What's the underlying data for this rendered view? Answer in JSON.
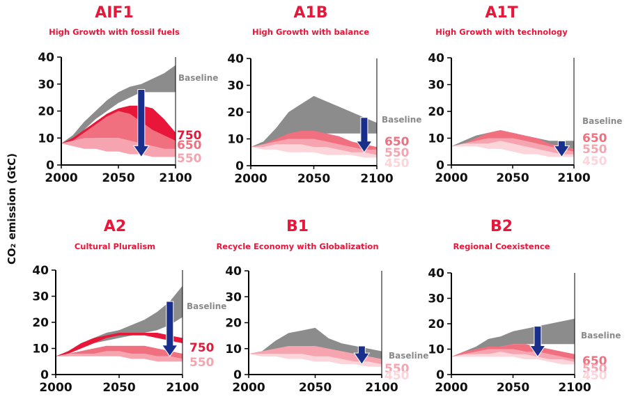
{
  "ylabel": "CO₂ emission (GtC)",
  "colors": {
    "baseline": "#8c8c8c",
    "s750": "#e8173a",
    "s650": "#f07080",
    "s550": "#f6a4b0",
    "s450": "#fcd5db",
    "arrow": "#1a2f8c",
    "axis": "#000000"
  },
  "chart_data": [
    {
      "type": "area",
      "title": "AIF1",
      "subtitle": "High Growth with fossil fuels",
      "xlim": [
        2000,
        2100
      ],
      "ylim": [
        0,
        40
      ],
      "xticks": [
        2000,
        2050,
        2100
      ],
      "yticks": [
        0,
        10,
        20,
        30,
        40
      ],
      "band_x": [
        2000,
        2010,
        2020,
        2030,
        2040,
        2050,
        2060,
        2070,
        2080,
        2090,
        2100
      ],
      "bands": [
        {
          "name": "Baseline",
          "color": "baseline",
          "lo": [
            8,
            9,
            13,
            17,
            20,
            23,
            25,
            27,
            27,
            27,
            27
          ],
          "hi": [
            8,
            11,
            16,
            20,
            24,
            27,
            29,
            30,
            32,
            34,
            37
          ]
        },
        {
          "name": "750",
          "color": "s750",
          "lo": [
            8,
            9,
            11,
            13,
            15,
            16,
            15,
            14,
            12,
            10,
            8
          ],
          "hi": [
            8,
            10,
            13,
            16,
            19,
            21,
            22,
            22,
            21,
            17,
            12
          ]
        },
        {
          "name": "650",
          "color": "s650",
          "lo": [
            8,
            8,
            9,
            10,
            10,
            10,
            9,
            8,
            7,
            6,
            5
          ],
          "hi": [
            8,
            9,
            12,
            15,
            18,
            20,
            19,
            16,
            13,
            11,
            9
          ]
        },
        {
          "name": "550",
          "color": "s550",
          "lo": [
            8,
            7,
            6,
            6,
            5,
            5,
            4,
            4,
            3,
            3,
            3
          ],
          "hi": [
            8,
            9,
            10,
            10,
            10,
            10,
            9,
            8,
            7,
            6,
            6
          ]
        }
      ],
      "labels": [
        {
          "text": "Baseline",
          "color": "baseline"
        },
        {
          "text": "750",
          "color": "s750"
        },
        {
          "text": "650",
          "color": "s650"
        },
        {
          "text": "550",
          "color": "s550"
        }
      ],
      "arrow": {
        "x": 2070,
        "from": 28,
        "to": 3
      }
    },
    {
      "type": "area",
      "title": "A1B",
      "subtitle": "High Growth with balance",
      "xlim": [
        2000,
        2100
      ],
      "ylim": [
        0,
        40
      ],
      "xticks": [
        2000,
        2050,
        2100
      ],
      "yticks": [
        0,
        10,
        20,
        30,
        40
      ],
      "band_x": [
        2000,
        2010,
        2020,
        2030,
        2040,
        2050,
        2060,
        2070,
        2080,
        2090,
        2100
      ],
      "bands": [
        {
          "name": "Baseline",
          "color": "baseline",
          "lo": [
            7,
            8,
            9,
            10,
            11,
            11,
            12,
            12,
            12,
            12,
            12
          ],
          "hi": [
            7,
            9,
            14,
            20,
            23,
            26,
            24,
            22,
            20,
            18,
            16
          ]
        },
        {
          "name": "650",
          "color": "s650",
          "lo": [
            7,
            7,
            8,
            8,
            8,
            8,
            8,
            7,
            6,
            6,
            5
          ],
          "hi": [
            7,
            8,
            10,
            12,
            13,
            13,
            12,
            11,
            9,
            8,
            7
          ]
        },
        {
          "name": "550",
          "color": "s550",
          "lo": [
            7,
            7,
            6,
            6,
            6,
            6,
            5,
            5,
            4,
            4,
            4
          ],
          "hi": [
            7,
            8,
            9,
            10,
            10,
            10,
            9,
            8,
            7,
            6,
            6
          ]
        },
        {
          "name": "450",
          "color": "s450",
          "lo": [
            7,
            6,
            6,
            5,
            5,
            5,
            4,
            4,
            4,
            3,
            3
          ],
          "hi": [
            7,
            7,
            8,
            8,
            8,
            7,
            7,
            6,
            5,
            5,
            4
          ]
        }
      ],
      "labels": [
        {
          "text": "Baseline",
          "color": "baseline"
        },
        {
          "text": "650",
          "color": "s650"
        },
        {
          "text": "550",
          "color": "s550"
        },
        {
          "text": "450",
          "color": "s450"
        }
      ],
      "arrow": {
        "x": 2090,
        "from": 18,
        "to": 5
      }
    },
    {
      "type": "area",
      "title": "A1T",
      "subtitle": "High Growth with technology",
      "xlim": [
        2000,
        2100
      ],
      "ylim": [
        0,
        40
      ],
      "xticks": [
        2000,
        2050,
        2100
      ],
      "yticks": [
        0,
        10,
        20,
        30,
        40
      ],
      "band_x": [
        2000,
        2010,
        2020,
        2030,
        2040,
        2050,
        2060,
        2070,
        2080,
        2090,
        2100
      ],
      "bands": [
        {
          "name": "Baseline",
          "color": "baseline",
          "lo": [
            7,
            8,
            9,
            10,
            10,
            10,
            9,
            8,
            7,
            7,
            6
          ],
          "hi": [
            7,
            9,
            11,
            12,
            12,
            12,
            11,
            10,
            9,
            9,
            9
          ]
        },
        {
          "name": "650",
          "color": "s650",
          "lo": [
            7,
            7,
            8,
            9,
            10,
            10,
            9,
            8,
            6,
            5,
            4
          ],
          "hi": [
            7,
            8,
            10,
            12,
            13,
            12,
            11,
            10,
            8,
            7,
            6
          ]
        },
        {
          "name": "550",
          "color": "s550",
          "lo": [
            7,
            7,
            7,
            7,
            7,
            6,
            5,
            5,
            4,
            4,
            3
          ],
          "hi": [
            7,
            8,
            9,
            10,
            10,
            10,
            9,
            8,
            7,
            6,
            5
          ]
        },
        {
          "name": "450",
          "color": "s450",
          "lo": [
            7,
            7,
            7,
            6,
            6,
            5,
            4,
            4,
            3,
            3,
            3
          ],
          "hi": [
            7,
            8,
            8,
            8,
            9,
            8,
            7,
            6,
            5,
            4,
            4
          ]
        }
      ],
      "labels": [
        {
          "text": "Baseline",
          "color": "baseline"
        },
        {
          "text": "650",
          "color": "s650"
        },
        {
          "text": "550",
          "color": "s550"
        },
        {
          "text": "450",
          "color": "s450"
        }
      ],
      "arrow": {
        "x": 2090,
        "from": 9,
        "to": 3
      }
    },
    {
      "type": "area",
      "title": "A2",
      "subtitle": "Cultural Pluralism",
      "xlim": [
        2000,
        2100
      ],
      "ylim": [
        0,
        40
      ],
      "xticks": [
        2000,
        2050,
        2100
      ],
      "yticks": [
        0,
        10,
        20,
        30,
        40
      ],
      "band_x": [
        2000,
        2010,
        2020,
        2030,
        2040,
        2050,
        2060,
        2070,
        2080,
        2090,
        2100
      ],
      "bands": [
        {
          "name": "Baseline",
          "color": "baseline",
          "lo": [
            7,
            8,
            10,
            12,
            13,
            14,
            15,
            16,
            17,
            19,
            22
          ],
          "hi": [
            7,
            9,
            12,
            14,
            16,
            17,
            19,
            21,
            24,
            28,
            34
          ]
        },
        {
          "name": "750",
          "color": "s750",
          "lo": [
            7,
            8,
            10,
            12,
            14,
            15,
            15,
            15,
            14,
            13,
            12
          ],
          "hi": [
            7,
            9,
            12,
            14,
            15,
            16,
            16,
            16,
            16,
            15,
            14
          ]
        },
        {
          "name": "650",
          "color": "s650",
          "lo": [
            7,
            7,
            8,
            8,
            8,
            8,
            8,
            8,
            7,
            7,
            6
          ],
          "hi": [
            7,
            8,
            9,
            10,
            11,
            11,
            11,
            11,
            10,
            9,
            8
          ]
        },
        {
          "name": "550",
          "color": "s550",
          "lo": [
            7,
            7,
            7,
            7,
            7,
            7,
            6,
            6,
            5,
            5,
            5
          ],
          "hi": [
            7,
            8,
            8,
            8,
            9,
            9,
            8,
            8,
            7,
            7,
            6
          ]
        }
      ],
      "labels": [
        {
          "text": "Baseline",
          "color": "baseline"
        },
        {
          "text": "750",
          "color": "s750"
        },
        {
          "text": "550",
          "color": "s550"
        }
      ],
      "arrow": {
        "x": 2090,
        "from": 28,
        "to": 7
      }
    },
    {
      "type": "area",
      "title": "B1",
      "subtitle": "Recycle Economy with Globalization",
      "xlim": [
        2000,
        2100
      ],
      "ylim": [
        0,
        40
      ],
      "xticks": [
        2000,
        2050,
        2100
      ],
      "yticks": [
        0,
        10,
        20,
        30,
        40
      ],
      "band_x": [
        2000,
        2010,
        2020,
        2030,
        2040,
        2050,
        2060,
        2070,
        2080,
        2090,
        2100
      ],
      "bands": [
        {
          "name": "Baseline",
          "color": "baseline",
          "lo": [
            8,
            8,
            9,
            9,
            9,
            9,
            8,
            7,
            6,
            5,
            4
          ],
          "hi": [
            8,
            9,
            13,
            16,
            17,
            18,
            14,
            12,
            11,
            10,
            9
          ]
        },
        {
          "name": "550",
          "color": "s550",
          "lo": [
            8,
            7,
            7,
            7,
            7,
            7,
            6,
            5,
            4,
            4,
            3
          ],
          "hi": [
            8,
            9,
            10,
            11,
            11,
            11,
            10,
            9,
            8,
            7,
            6
          ]
        },
        {
          "name": "450",
          "color": "s450",
          "lo": [
            8,
            7,
            7,
            6,
            6,
            5,
            5,
            4,
            4,
            3,
            3
          ],
          "hi": [
            8,
            8,
            8,
            8,
            8,
            7,
            7,
            6,
            5,
            5,
            4
          ]
        }
      ],
      "labels": [
        {
          "text": "Baseline",
          "color": "baseline"
        },
        {
          "text": "550",
          "color": "s550"
        },
        {
          "text": "450",
          "color": "s450"
        }
      ],
      "arrow": {
        "x": 2085,
        "from": 11,
        "to": 4
      }
    },
    {
      "type": "area",
      "title": "B2",
      "subtitle": "Regional Coexistence",
      "xlim": [
        2000,
        2100
      ],
      "ylim": [
        0,
        40
      ],
      "xticks": [
        2000,
        2050,
        2100
      ],
      "yticks": [
        0,
        10,
        20,
        30,
        40
      ],
      "band_x": [
        2000,
        2010,
        2020,
        2030,
        2040,
        2050,
        2060,
        2070,
        2080,
        2090,
        2100
      ],
      "bands": [
        {
          "name": "Baseline",
          "color": "baseline",
          "lo": [
            7,
            8,
            9,
            10,
            11,
            12,
            12,
            12,
            12,
            12,
            12
          ],
          "hi": [
            7,
            9,
            11,
            14,
            15,
            17,
            18,
            19,
            20,
            21,
            22
          ]
        },
        {
          "name": "650",
          "color": "s650",
          "lo": [
            7,
            8,
            9,
            9,
            9,
            10,
            9,
            8,
            7,
            6,
            5
          ],
          "hi": [
            7,
            9,
            10,
            11,
            11,
            12,
            12,
            11,
            10,
            9,
            8
          ]
        },
        {
          "name": "550",
          "color": "s550",
          "lo": [
            7,
            7,
            8,
            8,
            8,
            8,
            7,
            6,
            6,
            5,
            5
          ],
          "hi": [
            7,
            8,
            9,
            10,
            10,
            10,
            9,
            9,
            8,
            7,
            6
          ]
        },
        {
          "name": "450",
          "color": "s450",
          "lo": [
            7,
            7,
            7,
            7,
            7,
            7,
            6,
            6,
            5,
            4,
            4
          ],
          "hi": [
            7,
            8,
            8,
            8,
            9,
            8,
            8,
            7,
            6,
            6,
            5
          ]
        }
      ],
      "labels": [
        {
          "text": "Baseline",
          "color": "baseline"
        },
        {
          "text": "650",
          "color": "s650"
        },
        {
          "text": "550",
          "color": "s550"
        },
        {
          "text": "450",
          "color": "s450"
        }
      ],
      "arrow": {
        "x": 2070,
        "from": 19,
        "to": 7
      }
    }
  ]
}
